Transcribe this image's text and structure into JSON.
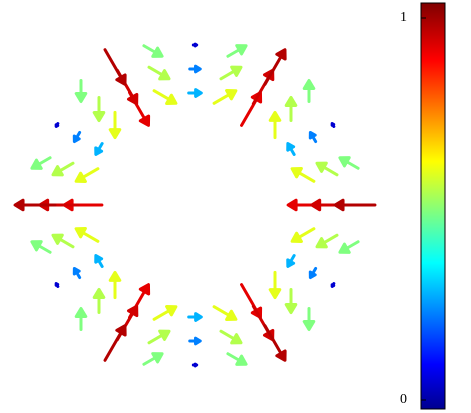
{
  "chart_data": {
    "type": "quiver",
    "colormap": "jet",
    "clim": [
      0,
      1
    ],
    "cticks": [
      0,
      1
    ],
    "x": [
      0.56,
      0.54,
      0.48,
      0.4,
      0.28,
      0.15,
      0,
      -0.15,
      -0.28,
      -0.4,
      -0.48,
      -0.54,
      -0.56,
      -0.54,
      -0.48,
      -0.4,
      -0.28,
      -0.15,
      0,
      0.15,
      0.28,
      0.4,
      0.48,
      0.54,
      0.68,
      0.66,
      0.59,
      0.48,
      0.34,
      0.18,
      0,
      -0.18,
      -0.34,
      -0.48,
      -0.59,
      -0.66,
      -0.68,
      -0.66,
      -0.59,
      -0.48,
      -0.34,
      -0.18,
      0,
      0.18,
      0.34,
      0.48,
      0.59,
      0.66,
      0.8,
      0.77,
      0.69,
      0.57,
      0.4,
      0.21,
      0,
      -0.21,
      -0.4,
      -0.57,
      -0.69,
      -0.77,
      -0.8,
      -0.77,
      -0.69,
      -0.57,
      -0.4,
      -0.21,
      0,
      0.21,
      0.4,
      0.57,
      0.69,
      0.77
    ],
    "y": [
      0,
      0.15,
      0.28,
      0.4,
      0.48,
      0.54,
      0.56,
      0.54,
      0.48,
      0.4,
      0.28,
      0.15,
      0,
      -0.15,
      -0.28,
      -0.4,
      -0.48,
      -0.54,
      -0.56,
      -0.54,
      -0.48,
      -0.4,
      -0.28,
      -0.15,
      0,
      0.18,
      0.34,
      0.48,
      0.59,
      0.66,
      0.68,
      0.66,
      0.59,
      0.48,
      0.34,
      0.18,
      0,
      -0.18,
      -0.34,
      -0.48,
      -0.59,
      -0.66,
      -0.68,
      -0.66,
      -0.59,
      -0.48,
      -0.34,
      -0.18,
      0,
      0.21,
      0.4,
      0.57,
      0.69,
      0.77,
      0.8,
      0.77,
      0.69,
      0.57,
      0.4,
      0.21,
      0,
      -0.21,
      -0.4,
      -0.57,
      -0.69,
      -0.77,
      -0.8,
      -0.77,
      -0.69,
      -0.57,
      -0.4,
      -0.21
    ],
    "angle": [
      180,
      150,
      120,
      90,
      60,
      30,
      0,
      -30,
      -60,
      -90,
      -120,
      -150,
      180,
      150,
      120,
      90,
      60,
      30,
      0,
      -30,
      -60,
      -90,
      -120,
      -150,
      180,
      150,
      120,
      90,
      60,
      30,
      0,
      -30,
      -60,
      -90,
      -120,
      -150,
      180,
      150,
      120,
      90,
      60,
      30,
      0,
      -30,
      -60,
      -90,
      -120,
      -150,
      180,
      150,
      120,
      90,
      60,
      30,
      0,
      -30,
      -60,
      -90,
      -120,
      -150,
      180,
      150,
      120,
      90,
      60,
      30,
      0,
      -30,
      -60,
      -90,
      -120,
      -150
    ],
    "values": [
      0.9,
      0.6,
      0.3,
      0.6,
      0.9,
      0.6,
      0.3,
      0.6,
      0.9,
      0.6,
      0.3,
      0.6,
      0.9,
      0.6,
      0.3,
      0.6,
      0.9,
      0.6,
      0.3,
      0.6,
      0.9,
      0.6,
      0.3,
      0.6,
      0.92,
      0.55,
      0.25,
      0.55,
      0.92,
      0.55,
      0.25,
      0.55,
      0.92,
      0.55,
      0.25,
      0.55,
      0.92,
      0.55,
      0.25,
      0.55,
      0.92,
      0.55,
      0.25,
      0.55,
      0.92,
      0.55,
      0.25,
      0.55,
      0.95,
      0.5,
      0.08,
      0.5,
      0.95,
      0.5,
      0.08,
      0.5,
      0.95,
      0.5,
      0.08,
      0.5,
      0.95,
      0.5,
      0.08,
      0.5,
      0.95,
      0.5,
      0.08,
      0.5,
      0.95,
      0.5,
      0.08,
      0.5
    ]
  }
}
